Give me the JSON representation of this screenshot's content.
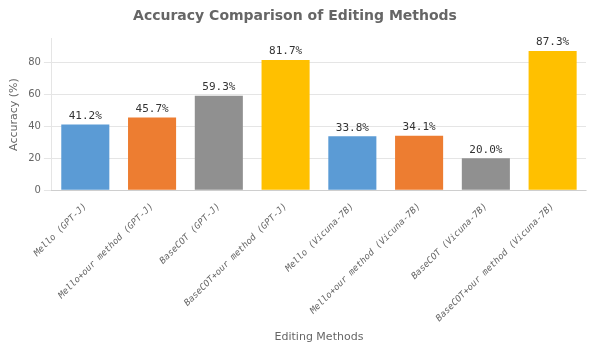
{
  "chart_data": {
    "type": "bar",
    "title": "Accuracy Comparison of Editing Methods",
    "xlabel": "Editing Methods",
    "ylabel": "Accuracy (%)",
    "categories": [
      "Mello (GPT-J)",
      "Mello+our method (GPT-J)",
      "BaseCOT (GPT-J)",
      "BaseCOT+our method (GPT-J)",
      "Mello (Vicuna-7B)",
      "Mello+our method (Vicuna-7B)",
      "BaseCOT (Vicuna-7B)",
      "BaseCOT+our method (Vicuna-7B)"
    ],
    "values": [
      41.2,
      45.7,
      59.3,
      81.7,
      33.8,
      34.1,
      20.0,
      87.3
    ],
    "value_labels": [
      "41.2%",
      "45.7%",
      "59.3%",
      "81.7%",
      "33.8%",
      "34.1%",
      "20.0%",
      "87.3%"
    ],
    "colors": [
      "#5b9bd5",
      "#ed7d31",
      "#909090",
      "#ffc000",
      "#5b9bd5",
      "#ed7d31",
      "#909090",
      "#ffc000"
    ],
    "data_labels": true,
    "ylim": [
      0,
      95
    ],
    "yticks": [
      0,
      20,
      40,
      60,
      80
    ],
    "grid": true
  }
}
